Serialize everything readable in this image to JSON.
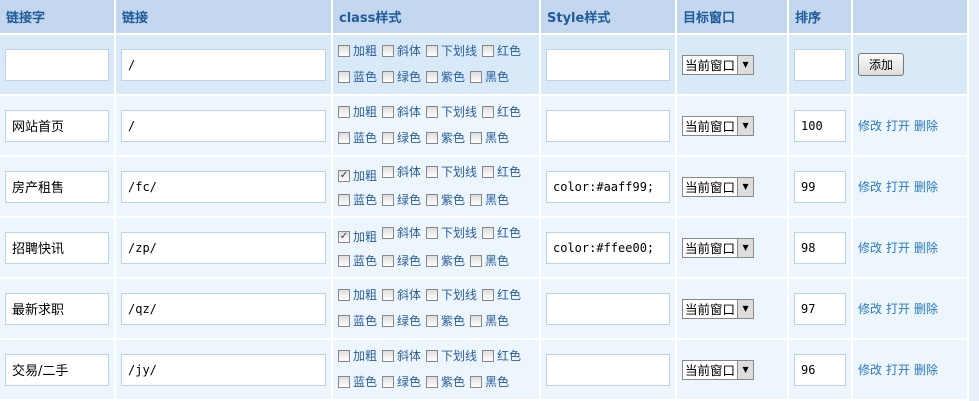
{
  "headers": [
    "链接字",
    "链接",
    "class样式",
    "Style样式",
    "目标窗口",
    "排序",
    ""
  ],
  "class_options": [
    "加粗",
    "斜体",
    "下划线",
    "红色",
    "蓝色",
    "绿色",
    "紫色",
    "黑色"
  ],
  "new_row": {
    "name": "",
    "url": "/",
    "style": "",
    "target": "当前窗口",
    "order": "",
    "add_label": "添加"
  },
  "actions": {
    "edit": "修改",
    "open": "打开",
    "delete": "删除"
  },
  "rows": [
    {
      "name": "网站首页",
      "url": "/",
      "checked": [],
      "style": "",
      "target": "当前窗口",
      "order": "100"
    },
    {
      "name": "房产租售",
      "url": "/fc/",
      "checked": [
        "加粗"
      ],
      "style": "color:#aaff99;",
      "target": "当前窗口",
      "order": "99"
    },
    {
      "name": "招聘快讯",
      "url": "/zp/",
      "checked": [
        "加粗"
      ],
      "style": "color:#ffee00;",
      "target": "当前窗口",
      "order": "98"
    },
    {
      "name": "最新求职",
      "url": "/qz/",
      "checked": [],
      "style": "",
      "target": "当前窗口",
      "order": "97"
    },
    {
      "name": "交易/二手",
      "url": "/jy/",
      "checked": [],
      "style": "",
      "target": "当前窗口",
      "order": "96"
    }
  ]
}
